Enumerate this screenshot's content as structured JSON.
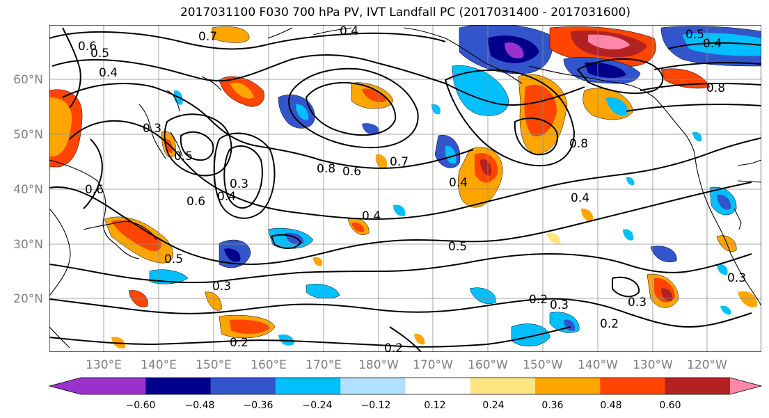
{
  "title": "2017031100 F030 700 hPa PV, IVT Landfall PC (2017031400 - 2017031600)",
  "map": {
    "lon_labels": [
      "130°E",
      "140°E",
      "150°E",
      "160°E",
      "170°E",
      "180°W",
      "170°W",
      "160°W",
      "150°W",
      "140°W",
      "130°W",
      "120°W"
    ],
    "lat_labels": [
      "60°N",
      "50°N",
      "40°N",
      "30°N",
      "20°N"
    ],
    "contour_labels": [
      "0.7",
      "0.4",
      "0.6",
      "0.5",
      "0.4",
      "0.3",
      "0.5",
      "0.6",
      "0.7",
      "0.8",
      "0.6",
      "0.3",
      "0.4",
      "0.6",
      "0.4",
      "0.5",
      "0.3",
      "0.4",
      "0.5",
      "0.3",
      "0.2",
      "0.2",
      "0.3",
      "0.2",
      "0.3",
      "0.8",
      "0.4",
      "0.8",
      "0.5",
      "0.4",
      "0.2"
    ]
  },
  "colorbar": {
    "ticks": [
      "−0.60",
      "−0.48",
      "−0.36",
      "−0.24",
      "−0.12",
      "0.12",
      "0.24",
      "0.36",
      "0.48",
      "0.60"
    ],
    "colors": [
      "#9932CC",
      "#00008B",
      "#3355CC",
      "#00BFFF",
      "#B0E2FF",
      "#FFFFFF",
      "#FFE680",
      "#FFA500",
      "#FF4500",
      "#B22222",
      "#FF88AA",
      "#FF88AA"
    ]
  }
}
